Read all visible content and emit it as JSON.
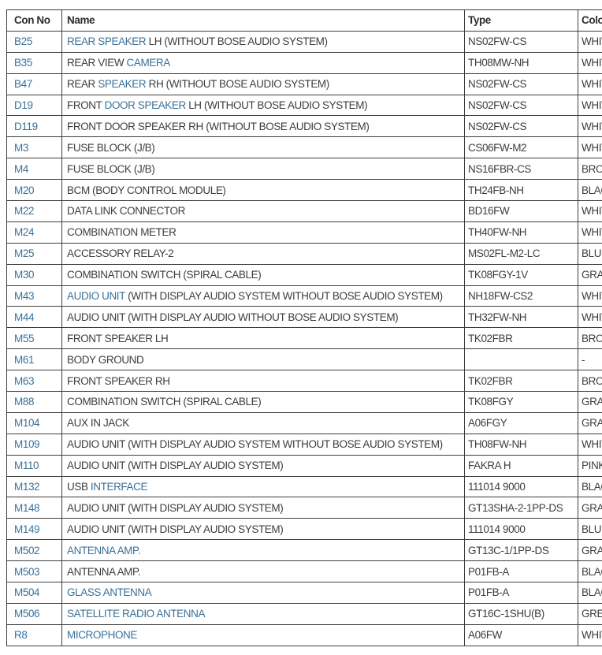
{
  "colors": {
    "link_blue": "#3a7199",
    "body_text": "#3d3d3d",
    "border": "#3e3e3e",
    "background": "#ffffff"
  },
  "table": {
    "headers": [
      "Con No",
      "Name",
      "Type",
      "Color"
    ],
    "rows": [
      {
        "con": "B25",
        "name": [
          {
            "t": "REAR SPEAKER",
            "link": true
          },
          {
            "t": " LH (WITHOUT BOSE AUDIO SYSTEM)",
            "link": false
          }
        ],
        "type": "NS02FW-CS",
        "color": "WHITE"
      },
      {
        "con": "B35",
        "name": [
          {
            "t": "REAR VIEW ",
            "link": false
          },
          {
            "t": "CAMERA",
            "link": true
          }
        ],
        "type": "TH08MW-NH",
        "color": "WHITE"
      },
      {
        "con": "B47",
        "name": [
          {
            "t": "REAR ",
            "link": false
          },
          {
            "t": "SPEAKER",
            "link": true
          },
          {
            "t": " RH (WITHOUT BOSE AUDIO SYSTEM)",
            "link": false
          }
        ],
        "type": "NS02FW-CS",
        "color": "WHITE"
      },
      {
        "con": "D19",
        "name": [
          {
            "t": "FRONT ",
            "link": false
          },
          {
            "t": "DOOR SPEAKER",
            "link": true
          },
          {
            "t": " LH (WITHOUT BOSE AUDIO SYSTEM)",
            "link": false
          }
        ],
        "type": "NS02FW-CS",
        "color": "WHITE"
      },
      {
        "con": "D119",
        "name": [
          {
            "t": "FRONT DOOR SPEAKER RH (WITHOUT BOSE AUDIO SYSTEM)",
            "link": false
          }
        ],
        "type": "NS02FW-CS",
        "color": "WHITE"
      },
      {
        "con": "M3",
        "name": [
          {
            "t": "FUSE BLOCK (J/B)",
            "link": false
          }
        ],
        "type": "CS06FW-M2",
        "color": "WHITE"
      },
      {
        "con": "M4",
        "name": [
          {
            "t": "FUSE BLOCK (J/B)",
            "link": false
          }
        ],
        "type": "NS16FBR-CS",
        "color": "BROWN"
      },
      {
        "con": "M20",
        "name": [
          {
            "t": "BCM (BODY CONTROL MODULE)",
            "link": false
          }
        ],
        "type": "TH24FB-NH",
        "color": "BLACK"
      },
      {
        "con": "M22",
        "name": [
          {
            "t": "DATA LINK CONNECTOR",
            "link": false
          }
        ],
        "type": "BD16FW",
        "color": "WHITE"
      },
      {
        "con": "M24",
        "name": [
          {
            "t": "COMBINATION METER",
            "link": false
          }
        ],
        "type": "TH40FW-NH",
        "color": "WHITE"
      },
      {
        "con": "M25",
        "name": [
          {
            "t": "ACCESSORY RELAY-2",
            "link": false
          }
        ],
        "type": "MS02FL-M2-LC",
        "color": "BLUE"
      },
      {
        "con": "M30",
        "name": [
          {
            "t": "COMBINATION SWITCH (SPIRAL CABLE)",
            "link": false
          }
        ],
        "type": "TK08FGY-1V",
        "color": "GRAY"
      },
      {
        "con": "M43",
        "name": [
          {
            "t": "AUDIO UNIT",
            "link": true
          },
          {
            "t": " (WITH DISPLAY AUDIO SYSTEM WITHOUT BOSE AUDIO SYSTEM)",
            "link": false
          }
        ],
        "type": "NH18FW-CS2",
        "color": "WHITE"
      },
      {
        "con": "M44",
        "name": [
          {
            "t": "AUDIO UNIT (WITH DISPLAY AUDIO WITHOUT BOSE AUDIO SYSTEM)",
            "link": false
          }
        ],
        "type": "TH32FW-NH",
        "color": "WHITE"
      },
      {
        "con": "M55",
        "name": [
          {
            "t": "FRONT SPEAKER LH",
            "link": false
          }
        ],
        "type": "TK02FBR",
        "color": "BROWN"
      },
      {
        "con": "M61",
        "name": [
          {
            "t": "BODY GROUND",
            "link": false
          }
        ],
        "type": "",
        "color": "-"
      },
      {
        "con": "M63",
        "name": [
          {
            "t": "FRONT SPEAKER RH",
            "link": false
          }
        ],
        "type": "TK02FBR",
        "color": "BROWN"
      },
      {
        "con": "M88",
        "name": [
          {
            "t": "COMBINATION SWITCH (SPIRAL CABLE)",
            "link": false
          }
        ],
        "type": "TK08FGY",
        "color": "GRAY"
      },
      {
        "con": "M104",
        "name": [
          {
            "t": "AUX IN JACK",
            "link": false
          }
        ],
        "type": "A06FGY",
        "color": "GRAY"
      },
      {
        "con": "M109",
        "name": [
          {
            "t": "AUDIO UNIT (WITH DISPLAY AUDIO SYSTEM WITHOUT BOSE AUDIO SYSTEM)",
            "link": false
          }
        ],
        "type": "TH08FW-NH",
        "color": "WHITE"
      },
      {
        "con": "M110",
        "name": [
          {
            "t": "AUDIO UNIT (WITH DISPLAY AUDIO SYSTEM)",
            "link": false
          }
        ],
        "type": "FAKRA H",
        "color": "PINK"
      },
      {
        "con": "M132",
        "name": [
          {
            "t": "USB ",
            "link": false
          },
          {
            "t": "INTERFACE",
            "link": true
          }
        ],
        "type": "111014 9000",
        "color": "BLACK"
      },
      {
        "con": "M148",
        "name": [
          {
            "t": "AUDIO UNIT (WITH DISPLAY AUDIO SYSTEM)",
            "link": false
          }
        ],
        "type": "GT13SHA-2-1PP-DS",
        "color": "GRAY"
      },
      {
        "con": "M149",
        "name": [
          {
            "t": "AUDIO UNIT (WITH DISPLAY AUDIO SYSTEM)",
            "link": false
          }
        ],
        "type": "111014 9000",
        "color": "BLUE"
      },
      {
        "con": "M502",
        "name": [
          {
            "t": "ANTENNA AMP.",
            "link": true
          }
        ],
        "type": "GT13C-1/1PP-DS",
        "color": "GRAY"
      },
      {
        "con": "M503",
        "name": [
          {
            "t": "ANTENNA AMP.",
            "link": false
          }
        ],
        "type": "P01FB-A",
        "color": "BLACK"
      },
      {
        "con": "M504",
        "name": [
          {
            "t": "GLASS ANTENNA",
            "link": true
          }
        ],
        "type": "P01FB-A",
        "color": "BLACK"
      },
      {
        "con": "M506",
        "name": [
          {
            "t": "SATELLITE RADIO ANTENNA",
            "link": true
          }
        ],
        "type": "GT16C-1SHU(B)",
        "color": "GREEN"
      },
      {
        "con": "R8",
        "name": [
          {
            "t": "MICROPHONE",
            "link": true
          }
        ],
        "type": "A06FW",
        "color": "WHITE"
      }
    ]
  }
}
